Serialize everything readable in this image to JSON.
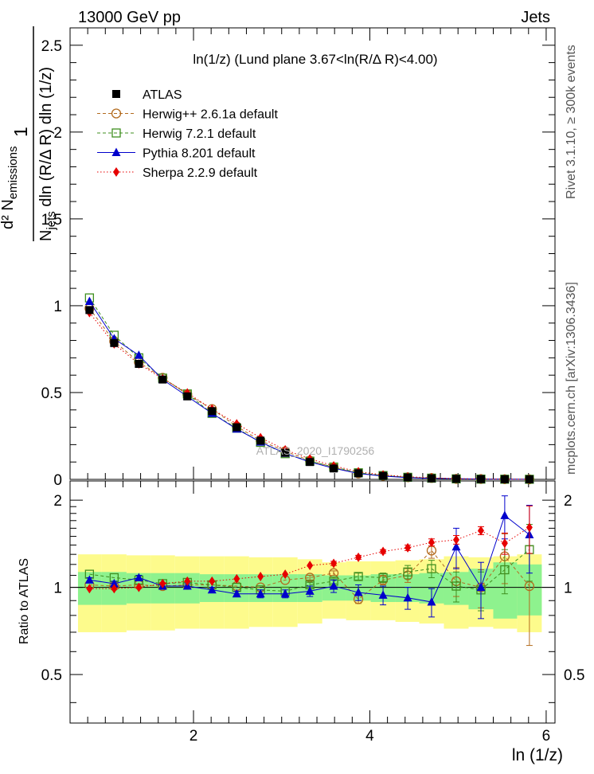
{
  "header": {
    "left": "13000 GeV pp",
    "right": "Jets"
  },
  "side": {
    "rivet": "Rivet 3.1.10, ≥ 300k events",
    "mcplots": "mcplots.cern.ch [arXiv:1306.3436]"
  },
  "watermark": "ATLAS_2020_I1790256",
  "chart_data": {
    "type": "line",
    "title": "ln(1/z) (Lund plane 3.67<ln(R/Δ R)<4.00)",
    "xlabel": "ln (1/z)",
    "ylabel_parts": {
      "frac_num": "1",
      "top_line": "d² N",
      "top_sub": "emissions",
      "bottom_a": "N",
      "bottom_sub": "jets",
      "bottom_b": " dln (R/Δ R) dln (1/z)"
    },
    "ratio_ylabel": "Ratio to ATLAS",
    "xlim": [
      0.6,
      6.1
    ],
    "ylim_main": [
      0.0,
      2.6
    ],
    "ylim_ratio": [
      0.34,
      2.33
    ],
    "x_ticks": [
      2,
      4,
      6
    ],
    "x_tick_labels": [
      "2",
      "4",
      "6"
    ],
    "y_ticks_main": [
      0,
      0.5,
      1,
      1.5,
      2,
      2.5
    ],
    "y_tick_labels_main": [
      "0",
      "0.5",
      "1",
      "1.5",
      "2",
      "2.5"
    ],
    "y_ticks_ratio": [
      0.5,
      1,
      2
    ],
    "y_tick_labels_ratio": [
      "0.5",
      "1",
      "2"
    ],
    "x": [
      0.82,
      1.1,
      1.38,
      1.65,
      1.93,
      2.21,
      2.49,
      2.76,
      3.04,
      3.32,
      3.59,
      3.87,
      4.15,
      4.43,
      4.7,
      4.98,
      5.26,
      5.53,
      5.81
    ],
    "bin_edges": [
      0.69,
      0.96,
      1.24,
      1.52,
      1.79,
      2.07,
      2.35,
      2.63,
      2.9,
      3.18,
      3.46,
      3.73,
      4.01,
      4.29,
      4.56,
      4.84,
      5.12,
      5.4,
      5.67,
      5.95
    ],
    "atlas": [
      0.975,
      0.785,
      0.665,
      0.575,
      0.478,
      0.393,
      0.3,
      0.223,
      0.153,
      0.1,
      0.063,
      0.035,
      0.02,
      0.011,
      0.006,
      0.003,
      0.0015,
      0.0008,
      0.0004
    ],
    "band_stat": [
      0.13,
      0.13,
      0.12,
      0.12,
      0.12,
      0.11,
      0.11,
      0.11,
      0.11,
      0.11,
      0.1,
      0.1,
      0.11,
      0.11,
      0.12,
      0.13,
      0.16,
      0.22,
      0.2
    ],
    "band_total": [
      0.3,
      0.3,
      0.29,
      0.29,
      0.28,
      0.28,
      0.28,
      0.27,
      0.27,
      0.25,
      0.22,
      0.23,
      0.23,
      0.24,
      0.25,
      0.28,
      0.27,
      0.28,
      0.3
    ],
    "series": [
      {
        "name": "ATLAS",
        "color": "#000000",
        "marker": "filled-square",
        "line": "none",
        "main": [
          0.975,
          0.785,
          0.665,
          0.575,
          0.478,
          0.393,
          0.3,
          0.223,
          0.153,
          0.1,
          0.063,
          0.035,
          0.02,
          0.011,
          0.006,
          0.003,
          0.0015,
          0.0008,
          0.0004
        ],
        "ratio": [
          1,
          1,
          1,
          1,
          1,
          1,
          1,
          1,
          1,
          1,
          1,
          1,
          1,
          1,
          1,
          1,
          1,
          1,
          1
        ]
      },
      {
        "name": "Herwig++ 2.6.1a default",
        "color": "#b36b1e",
        "marker": "open-circle",
        "line": "dashed",
        "main": [
          0.985,
          0.795,
          0.675,
          0.585,
          0.49,
          0.405,
          0.305,
          0.223,
          0.162,
          0.108,
          0.069,
          0.034,
          0.021,
          0.012,
          0.008,
          0.003,
          0.002,
          0.001,
          0.0004
        ],
        "ratio": [
          1.02,
          1.01,
          1.02,
          1.01,
          1.02,
          1.02,
          1.01,
          1.0,
          1.06,
          1.08,
          1.12,
          0.91,
          1.06,
          1.1,
          1.34,
          1.05,
          1.0,
          1.28,
          1.01
        ],
        "ratio_err": [
          0.01,
          0.01,
          0.01,
          0.01,
          0.01,
          0.01,
          0.01,
          0.01,
          0.01,
          0.02,
          0.02,
          0.03,
          0.04,
          0.06,
          0.08,
          0.12,
          0.15,
          0.25,
          0.38
        ]
      },
      {
        "name": "Herwig 7.2.1 default",
        "color": "#3f8f1f",
        "marker": "open-square",
        "line": "dashed",
        "main": [
          1.045,
          0.83,
          0.7,
          0.583,
          0.492,
          0.38,
          0.295,
          0.213,
          0.148,
          0.105,
          0.071,
          0.038,
          0.022,
          0.012,
          0.007,
          0.003,
          0.0015,
          0.0009,
          0.0005
        ],
        "ratio": [
          1.11,
          1.08,
          1.06,
          1.03,
          1.04,
          1.02,
          1.0,
          0.98,
          0.97,
          1.02,
          1.05,
          1.09,
          1.08,
          1.13,
          1.16,
          1.01,
          0.98,
          1.15,
          1.35
        ],
        "ratio_err": [
          0.01,
          0.01,
          0.01,
          0.01,
          0.01,
          0.01,
          0.01,
          0.01,
          0.01,
          0.02,
          0.02,
          0.03,
          0.04,
          0.06,
          0.08,
          0.12,
          0.15,
          0.2,
          0.3
        ]
      },
      {
        "name": "Pythia 8.201 default",
        "color": "#0000cc",
        "marker": "filled-triangle",
        "line": "solid",
        "main": [
          1.025,
          0.81,
          0.715,
          0.575,
          0.478,
          0.38,
          0.29,
          0.215,
          0.15,
          0.1,
          0.064,
          0.034,
          0.019,
          0.01,
          0.006,
          0.004,
          0.0015,
          0.0014,
          0.0006
        ],
        "ratio": [
          1.06,
          1.03,
          1.08,
          1.01,
          1.01,
          0.98,
          0.95,
          0.95,
          0.95,
          0.97,
          1.01,
          0.96,
          0.94,
          0.92,
          0.89,
          1.38,
          1.0,
          1.77,
          1.52
        ],
        "ratio_err": [
          0.02,
          0.02,
          0.02,
          0.02,
          0.02,
          0.02,
          0.02,
          0.03,
          0.03,
          0.04,
          0.05,
          0.06,
          0.07,
          0.08,
          0.1,
          0.22,
          0.22,
          0.3,
          0.4
        ]
      },
      {
        "name": "Sherpa 2.2.9 default",
        "color": "#e60000",
        "marker": "filled-diamond",
        "line": "dotted",
        "main": [
          0.96,
          0.78,
          0.665,
          0.58,
          0.498,
          0.405,
          0.32,
          0.24,
          0.17,
          0.118,
          0.078,
          0.044,
          0.026,
          0.015,
          0.009,
          0.004,
          0.0024,
          0.0011,
          0.0006
        ],
        "ratio": [
          0.99,
          0.99,
          1.0,
          1.03,
          1.05,
          1.05,
          1.07,
          1.09,
          1.11,
          1.19,
          1.21,
          1.27,
          1.33,
          1.37,
          1.43,
          1.46,
          1.57,
          1.42,
          1.61
        ],
        "ratio_err": [
          0.01,
          0.01,
          0.01,
          0.01,
          0.01,
          0.01,
          0.01,
          0.01,
          0.01,
          0.01,
          0.02,
          0.02,
          0.02,
          0.03,
          0.04,
          0.05,
          0.05,
          0.12,
          0.3
        ]
      }
    ]
  }
}
